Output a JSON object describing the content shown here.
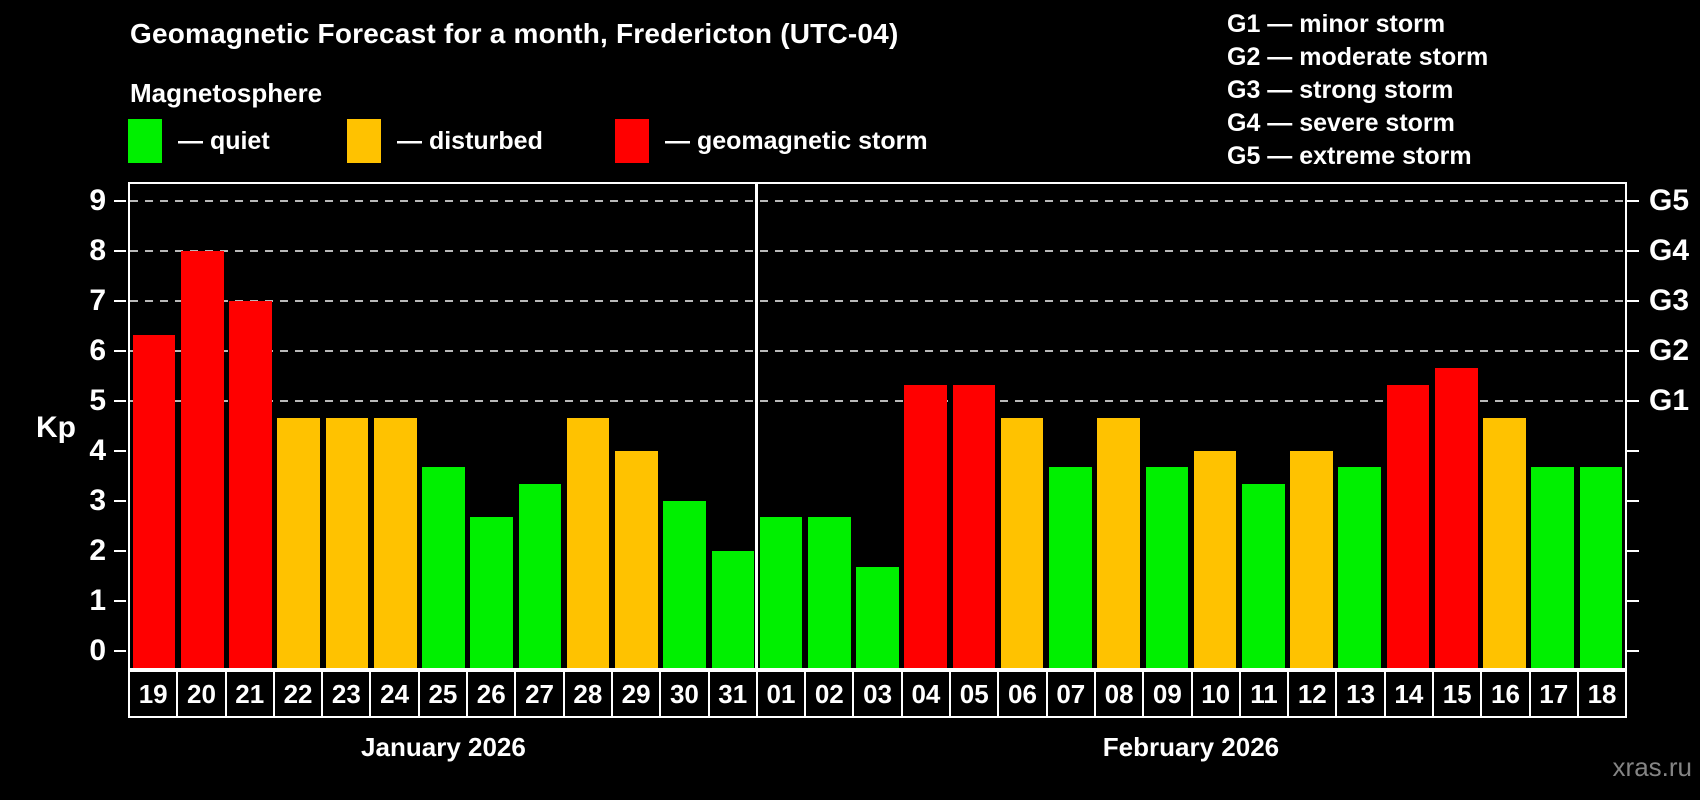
{
  "title": "Geomagnetic Forecast for a month, Fredericton (UTC-04)",
  "legend": {
    "heading": "Magnetosphere",
    "items": [
      {
        "label": "— quiet",
        "status": "quiet",
        "color": "#00f000"
      },
      {
        "label": "— disturbed",
        "status": "disturbed",
        "color": "#ffc200"
      },
      {
        "label": "— geomagnetic storm",
        "status": "storm",
        "color": "#ff0000"
      }
    ]
  },
  "g_scale_legend": {
    "lines": [
      "G1 — minor storm",
      "G2 — moderate storm",
      "G3 — strong storm",
      "G4 — severe storm",
      "G5 — extreme storm"
    ]
  },
  "watermark": "xras.ru",
  "chart_data": {
    "type": "bar",
    "ylabel": "Kp",
    "ylim": [
      0,
      9
    ],
    "yticks": [
      0,
      1,
      2,
      3,
      4,
      5,
      6,
      7,
      8,
      9
    ],
    "gridlines_at": [
      5,
      6,
      7,
      8,
      9
    ],
    "grid": "dashed, horizontal, only at G-storm levels 5-9",
    "right_axis_labels": [
      {
        "value": 5,
        "label": "G1"
      },
      {
        "value": 6,
        "label": "G2"
      },
      {
        "value": 7,
        "label": "G3"
      },
      {
        "value": 8,
        "label": "G4"
      },
      {
        "value": 9,
        "label": "G5"
      }
    ],
    "status_colors": {
      "quiet": "#00f000",
      "disturbed": "#ffc200",
      "storm": "#ff0000"
    },
    "months": [
      {
        "label": "January 2026",
        "days": [
          {
            "date": "19",
            "kp": 6.33,
            "status": "storm"
          },
          {
            "date": "20",
            "kp": 8.0,
            "status": "storm"
          },
          {
            "date": "21",
            "kp": 7.0,
            "status": "storm"
          },
          {
            "date": "22",
            "kp": 4.67,
            "status": "disturbed"
          },
          {
            "date": "23",
            "kp": 4.67,
            "status": "disturbed"
          },
          {
            "date": "24",
            "kp": 4.67,
            "status": "disturbed"
          },
          {
            "date": "25",
            "kp": 3.67,
            "status": "quiet"
          },
          {
            "date": "26",
            "kp": 2.67,
            "status": "quiet"
          },
          {
            "date": "27",
            "kp": 3.33,
            "status": "quiet"
          },
          {
            "date": "28",
            "kp": 4.67,
            "status": "disturbed"
          },
          {
            "date": "29",
            "kp": 4.0,
            "status": "disturbed"
          },
          {
            "date": "30",
            "kp": 3.0,
            "status": "quiet"
          },
          {
            "date": "31",
            "kp": 2.0,
            "status": "quiet"
          }
        ]
      },
      {
        "label": "February 2026",
        "days": [
          {
            "date": "01",
            "kp": 2.67,
            "status": "quiet"
          },
          {
            "date": "02",
            "kp": 2.67,
            "status": "quiet"
          },
          {
            "date": "03",
            "kp": 1.67,
            "status": "quiet"
          },
          {
            "date": "04",
            "kp": 5.33,
            "status": "storm"
          },
          {
            "date": "05",
            "kp": 5.33,
            "status": "storm"
          },
          {
            "date": "06",
            "kp": 4.67,
            "status": "disturbed"
          },
          {
            "date": "07",
            "kp": 3.67,
            "status": "quiet"
          },
          {
            "date": "08",
            "kp": 4.67,
            "status": "disturbed"
          },
          {
            "date": "09",
            "kp": 3.67,
            "status": "quiet"
          },
          {
            "date": "10",
            "kp": 4.0,
            "status": "disturbed"
          },
          {
            "date": "11",
            "kp": 3.33,
            "status": "quiet"
          },
          {
            "date": "12",
            "kp": 4.0,
            "status": "disturbed"
          },
          {
            "date": "13",
            "kp": 3.67,
            "status": "quiet"
          },
          {
            "date": "14",
            "kp": 5.33,
            "status": "storm"
          },
          {
            "date": "15",
            "kp": 5.67,
            "status": "storm"
          },
          {
            "date": "16",
            "kp": 4.67,
            "status": "disturbed"
          },
          {
            "date": "17",
            "kp": 3.67,
            "status": "quiet"
          },
          {
            "date": "18",
            "kp": 3.67,
            "status": "quiet"
          }
        ]
      }
    ]
  }
}
